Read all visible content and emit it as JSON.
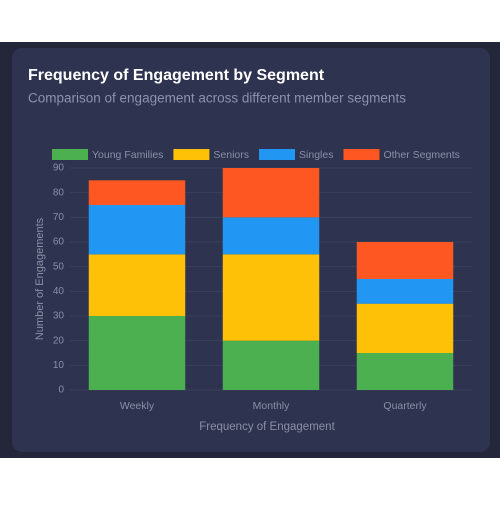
{
  "chart_data": {
    "type": "stacked_bar",
    "title": "Frequency of Engagement by Segment",
    "subtitle": "Comparison of engagement across different member segments",
    "x_label": "Frequency of Engagement",
    "y_label": "Number of Engagements",
    "categories": [
      "Weekly",
      "Monthly",
      "Quarterly"
    ],
    "series": [
      {
        "name": "Young Families",
        "color": "#4caf50",
        "values": [
          30,
          20,
          15
        ]
      },
      {
        "name": "Seniors",
        "color": "#ffc107",
        "values": [
          25,
          35,
          20
        ]
      },
      {
        "name": "Singles",
        "color": "#2196f3",
        "values": [
          20,
          15,
          10
        ]
      },
      {
        "name": "Other Segments",
        "color": "#ff5722",
        "values": [
          10,
          20,
          15
        ]
      }
    ],
    "ylim": [
      0,
      90
    ],
    "yticks": [
      0,
      10,
      20,
      30,
      40,
      50,
      60,
      70,
      80,
      90
    ],
    "grid": true,
    "legend": "top"
  }
}
